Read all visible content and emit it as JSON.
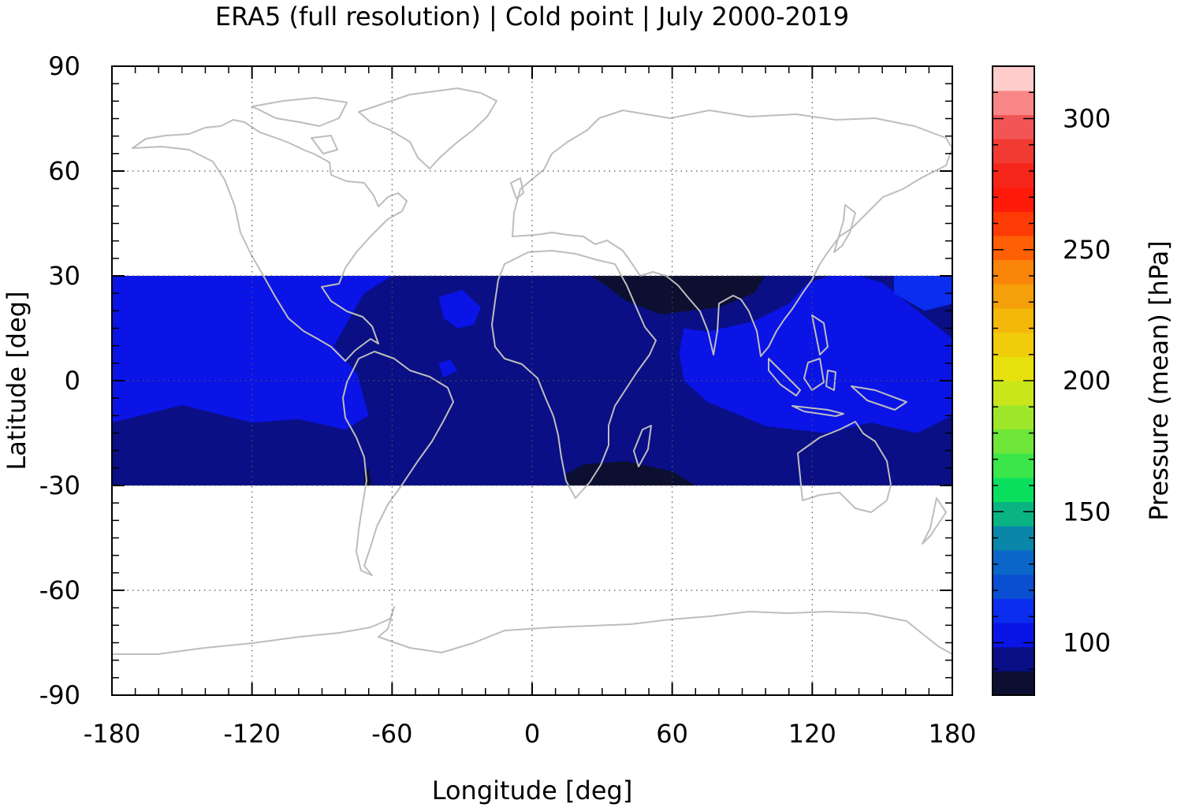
{
  "chart_data": {
    "type": "heatmap",
    "title": "ERA5 (full resolution) | Cold point | July 2000-2019",
    "xlabel": "Longitude [deg]",
    "ylabel": "Latitude [deg]",
    "xlim": [
      -180,
      180
    ],
    "ylim": [
      -90,
      90
    ],
    "xticks": [
      -180,
      -120,
      -60,
      0,
      60,
      120,
      180
    ],
    "xtick_labels": [
      "-180",
      "-120",
      "-60",
      "0",
      "60",
      "120",
      "180"
    ],
    "yticks": [
      -90,
      -60,
      -30,
      0,
      30,
      60,
      90
    ],
    "ytick_labels": [
      "-90",
      "-60",
      "-30",
      "0",
      "30",
      "60",
      "90"
    ],
    "grid": true,
    "data_lat_range": [
      -30,
      30
    ],
    "background_value": 95,
    "regions": [
      {
        "name": "",
        "value": 105,
        "polygon": [
          [
            -180,
            30
          ],
          [
            -180,
            -12
          ],
          [
            -150,
            -7
          ],
          [
            -120,
            -12
          ],
          [
            -100,
            -11
          ],
          [
            -80,
            -14
          ],
          [
            -70,
            -10
          ],
          [
            -75,
            2
          ],
          [
            -85,
            10
          ],
          [
            -72,
            25
          ],
          [
            -60,
            30
          ]
        ]
      },
      {
        "name": "",
        "value": 105,
        "polygon": [
          [
            -40,
            24
          ],
          [
            -30,
            26
          ],
          [
            -22,
            21
          ],
          [
            -25,
            16
          ],
          [
            -32,
            15
          ],
          [
            -38,
            18
          ]
        ]
      },
      {
        "name": "",
        "value": 105,
        "polygon": [
          [
            -40,
            5
          ],
          [
            -35,
            6
          ],
          [
            -32,
            3
          ],
          [
            -38,
            1
          ]
        ]
      },
      {
        "name": "",
        "value": 105,
        "polygon": [
          [
            65,
            15
          ],
          [
            75,
            14
          ],
          [
            95,
            17
          ],
          [
            110,
            22
          ],
          [
            118,
            28
          ],
          [
            128,
            30
          ],
          [
            140,
            30
          ],
          [
            150,
            28
          ],
          [
            165,
            20
          ],
          [
            180,
            12
          ],
          [
            180,
            -10
          ],
          [
            165,
            -15
          ],
          [
            145,
            -12
          ],
          [
            125,
            -15
          ],
          [
            100,
            -13
          ],
          [
            75,
            -6
          ],
          [
            65,
            0
          ],
          [
            63,
            8
          ]
        ]
      },
      {
        "name": "",
        "value": 110,
        "polygon": [
          [
            155,
            30
          ],
          [
            180,
            30
          ],
          [
            180,
            22
          ],
          [
            168,
            20
          ],
          [
            155,
            25
          ]
        ]
      },
      {
        "name": "",
        "value": 85,
        "polygon": [
          [
            25,
            30
          ],
          [
            100,
            30
          ],
          [
            95,
            25
          ],
          [
            80,
            21
          ],
          [
            55,
            19
          ],
          [
            40,
            23
          ],
          [
            30,
            28
          ]
        ]
      },
      {
        "name": "",
        "value": 85,
        "polygon": [
          [
            15,
            -30
          ],
          [
            70,
            -30
          ],
          [
            60,
            -26
          ],
          [
            40,
            -23
          ],
          [
            22,
            -24
          ],
          [
            14,
            -27
          ]
        ]
      },
      {
        "name": "",
        "value": 85,
        "polygon": [
          [
            -72,
            -30
          ],
          [
            -69,
            -30
          ],
          [
            -70,
            -25
          ],
          [
            -72,
            -26
          ]
        ]
      }
    ],
    "colorbar": {
      "label": "Pressure (mean) [hPa]",
      "min": 80,
      "max": 320,
      "ticks": [
        100,
        150,
        200,
        250,
        300
      ],
      "tick_labels": [
        "100",
        "150",
        "200",
        "250",
        "300"
      ],
      "colors": [
        "#0c0f2f",
        "#0a0f85",
        "#0a14e6",
        "#0b2df0",
        "#0a4fd2",
        "#0a66c8",
        "#0a86a8",
        "#0ab482",
        "#0ae05e",
        "#3ae64a",
        "#6ee63a",
        "#9ee62a",
        "#c8e61a",
        "#e6e10d",
        "#f0cc0a",
        "#f4b80a",
        "#f5a00a",
        "#fa8508",
        "#ff5f05",
        "#ff3b05",
        "#ff1a0a",
        "#f5251a",
        "#f03a32",
        "#f25555",
        "#f98686",
        "#ffcccc"
      ]
    }
  }
}
